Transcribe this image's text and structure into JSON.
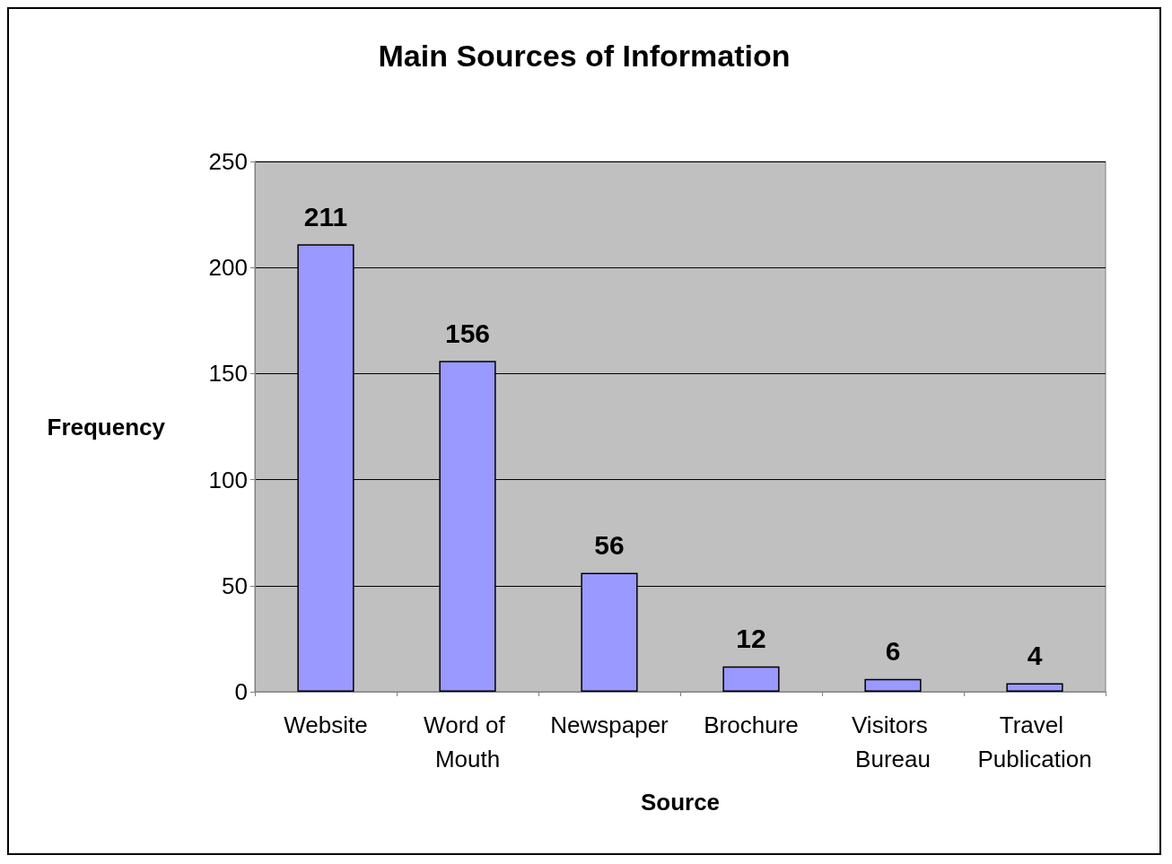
{
  "chart_data": {
    "type": "bar",
    "title": "Main Sources of Information",
    "xlabel": "Source",
    "ylabel": "Frequency",
    "categories": [
      "Website",
      "Word of Mouth",
      "Newspaper",
      "Brochure",
      "Visitors Bureau",
      "Travel Publication"
    ],
    "values": [
      211,
      156,
      56,
      12,
      6,
      4
    ],
    "color": "#9999ff",
    "ylim": [
      0,
      250
    ],
    "yticks": [
      0,
      50,
      100,
      150,
      200,
      250
    ],
    "grid": "y",
    "data_labels": true
  }
}
